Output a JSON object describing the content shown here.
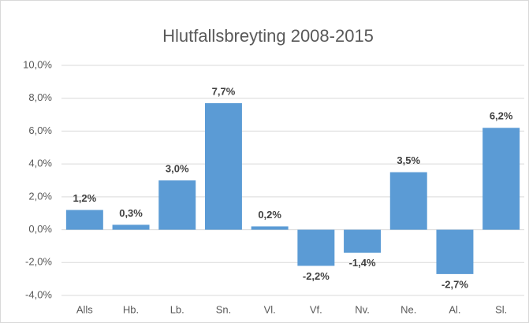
{
  "chart_data": {
    "type": "bar",
    "title": "Hlutfallsbreyting 2008-2015",
    "categories": [
      "Alls",
      "Hb.",
      "Lb.",
      "Sn.",
      "Vl.",
      "Vf.",
      "Nv.",
      "Ne.",
      "Al.",
      "Sl."
    ],
    "values": [
      1.2,
      0.3,
      3.0,
      7.7,
      0.2,
      -2.2,
      -1.4,
      3.5,
      -2.7,
      6.2
    ],
    "value_labels": [
      "1,2%",
      "0,3%",
      "3,0%",
      "7,7%",
      "0,2%",
      "-2,2%",
      "-1,4%",
      "3,5%",
      "-2,7%",
      "6,2%"
    ],
    "color": "#5b9bd5",
    "ylim": [
      -4,
      10
    ],
    "yticks": [
      {
        "value": -4,
        "label": "-4,0%"
      },
      {
        "value": -2,
        "label": "-2,0%"
      },
      {
        "value": 0,
        "label": "0,0%"
      },
      {
        "value": 2,
        "label": "2,0%"
      },
      {
        "value": 4,
        "label": "4,0%"
      },
      {
        "value": 6,
        "label": "6,0%"
      },
      {
        "value": 8,
        "label": "8,0%"
      },
      {
        "value": 10,
        "label": "10,0%"
      }
    ],
    "grid": true
  }
}
